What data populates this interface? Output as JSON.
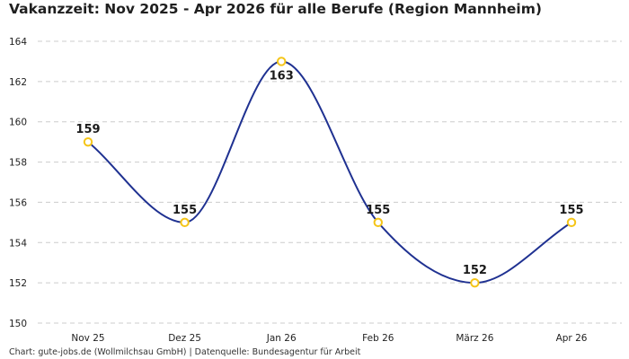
{
  "chart_data": {
    "type": "line",
    "title": "Vakanzzeit: Nov 2025 - Apr 2026 für alle Berufe (Region Mannheim)",
    "categories": [
      "Nov 25",
      "Dez 25",
      "Jan 26",
      "Feb 26",
      "März 26",
      "Apr 26"
    ],
    "series": [
      {
        "values": [
          159,
          155,
          163,
          155,
          152,
          155
        ]
      }
    ],
    "data_labels": [
      "159",
      "155",
      "163",
      "155",
      "152",
      "155"
    ],
    "ylim": [
      150,
      164
    ],
    "yticks": [
      150,
      152,
      154,
      156,
      158,
      160,
      162,
      164
    ],
    "ytick_labels": [
      "150",
      "152",
      "154",
      "156",
      "158",
      "160",
      "162",
      "164"
    ],
    "grid": true,
    "smooth": true,
    "colors": {
      "line": "#1f3191",
      "marker_stroke": "#f5c518",
      "marker_fill": "#ffffff",
      "grid": "#cccccc"
    }
  },
  "footer": "Chart: gute-jobs.de (Wollmilchsau GmbH) | Datenquelle: Bundesagentur für Arbeit"
}
